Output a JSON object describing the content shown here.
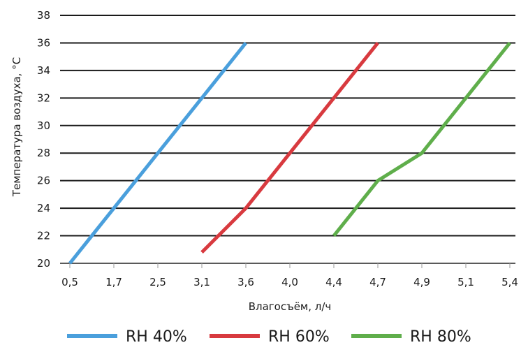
{
  "chart_data": {
    "type": "line",
    "title": "",
    "xlabel": "Влагосъём, л/ч",
    "ylabel": "Температура воздуха, °C",
    "x_ticks": [
      "0,5",
      "1,7",
      "2,5",
      "3,1",
      "3,6",
      "4,0",
      "4,4",
      "4,7",
      "4,9",
      "5,1",
      "5,4"
    ],
    "y_ticks": [
      20,
      22,
      24,
      26,
      28,
      30,
      32,
      34,
      36,
      38
    ],
    "ylim": [
      20,
      38
    ],
    "grid": "horizontal",
    "legend_position": "bottom",
    "series": [
      {
        "name": "RH 40%",
        "color": "#4a9fdc",
        "points": [
          {
            "x": "0,5",
            "y": 20
          },
          {
            "x": "3,6",
            "y": 36
          }
        ]
      },
      {
        "name": "RH 60%",
        "color": "#d83a3f",
        "points": [
          {
            "x": "3,1",
            "y": 20.8
          },
          {
            "x": "3,6",
            "y": 24
          },
          {
            "x": "4,7",
            "y": 36
          }
        ]
      },
      {
        "name": "RH 80%",
        "color": "#5fae4b",
        "points": [
          {
            "x": "4,4",
            "y": 22
          },
          {
            "x": "4,7",
            "y": 26
          },
          {
            "x": "4,9",
            "y": 28
          },
          {
            "x": "5,4",
            "y": 36
          }
        ]
      }
    ]
  }
}
